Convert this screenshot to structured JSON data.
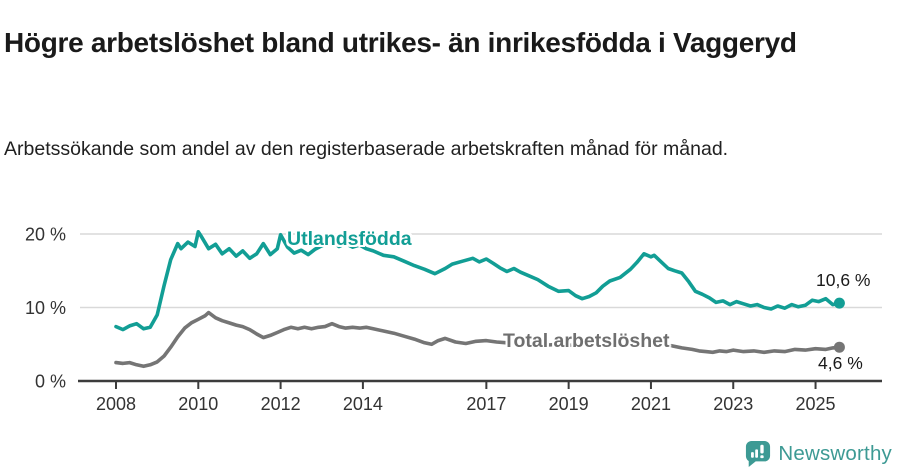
{
  "header": {
    "title": "Högre arbetslöshet bland utrikes- än inrikesfödda i Vaggeryd",
    "subtitle": "Arbetssökande som andel av den registerbaserade arbetskraften månad för månad."
  },
  "footer": {
    "brand": "Newsworthy"
  },
  "colors": {
    "foreign_line": "#129e95",
    "total_line": "#757575",
    "grid": "#d9d9d9",
    "axis": "#3c3c3c",
    "tick_text": "#333333",
    "logo": "#3d9a94"
  },
  "chart_data": {
    "type": "line",
    "title": "Högre arbetslöshet bland utrikes- än inrikesfödda i Vaggeryd",
    "subtitle": "Arbetssökande som andel av den registerbaserade arbetskraften månad för månad.",
    "x_range": [
      2008,
      2025.6
    ],
    "ylim": [
      0,
      21
    ],
    "grid": true,
    "legend": "inline-labels",
    "yticks": [
      {
        "value": 0,
        "label": "0 %"
      },
      {
        "value": 10,
        "label": "10 %"
      },
      {
        "value": 20,
        "label": "20 %"
      }
    ],
    "xticks": [
      "2008",
      "2010",
      "2012",
      "2014",
      "2017",
      "2019",
      "2021",
      "2023",
      "2025"
    ],
    "xtick_years": [
      2008,
      2010,
      2012,
      2014,
      2017,
      2019,
      2021,
      2023,
      2025
    ],
    "series": [
      {
        "name": "Utlandsfödda",
        "color": "#129e95",
        "end_label": "10,6 %",
        "end_value": 10.6,
        "points": [
          [
            2008.0,
            7.4
          ],
          [
            2008.17,
            7.0
          ],
          [
            2008.33,
            7.5
          ],
          [
            2008.5,
            7.8
          ],
          [
            2008.67,
            7.1
          ],
          [
            2008.83,
            7.3
          ],
          [
            2009.0,
            9.0
          ],
          [
            2009.17,
            13.0
          ],
          [
            2009.33,
            16.5
          ],
          [
            2009.5,
            18.7
          ],
          [
            2009.58,
            18.0
          ],
          [
            2009.75,
            18.9
          ],
          [
            2009.92,
            18.3
          ],
          [
            2010.0,
            20.3
          ],
          [
            2010.08,
            19.6
          ],
          [
            2010.25,
            18.0
          ],
          [
            2010.42,
            18.6
          ],
          [
            2010.58,
            17.3
          ],
          [
            2010.75,
            18.0
          ],
          [
            2010.92,
            17.0
          ],
          [
            2011.08,
            17.7
          ],
          [
            2011.25,
            16.7
          ],
          [
            2011.42,
            17.3
          ],
          [
            2011.58,
            18.7
          ],
          [
            2011.75,
            17.2
          ],
          [
            2011.92,
            18.0
          ],
          [
            2012.0,
            19.9
          ],
          [
            2012.17,
            18.2
          ],
          [
            2012.33,
            17.4
          ],
          [
            2012.5,
            17.8
          ],
          [
            2012.67,
            17.2
          ],
          [
            2012.83,
            17.9
          ],
          [
            2013.0,
            18.4
          ],
          [
            2013.25,
            19.0
          ],
          [
            2013.42,
            18.3
          ],
          [
            2013.58,
            18.7
          ],
          [
            2013.75,
            18.2
          ],
          [
            2013.92,
            18.5
          ],
          [
            2014.08,
            18.0
          ],
          [
            2014.25,
            17.7
          ],
          [
            2014.5,
            17.1
          ],
          [
            2014.75,
            16.9
          ],
          [
            2015.0,
            16.3
          ],
          [
            2015.25,
            15.7
          ],
          [
            2015.5,
            15.2
          ],
          [
            2015.75,
            14.6
          ],
          [
            2016.0,
            15.3
          ],
          [
            2016.17,
            15.9
          ],
          [
            2016.42,
            16.3
          ],
          [
            2016.67,
            16.7
          ],
          [
            2016.83,
            16.2
          ],
          [
            2017.0,
            16.6
          ],
          [
            2017.17,
            16.0
          ],
          [
            2017.33,
            15.4
          ],
          [
            2017.5,
            14.9
          ],
          [
            2017.67,
            15.3
          ],
          [
            2017.83,
            14.8
          ],
          [
            2018.0,
            14.4
          ],
          [
            2018.25,
            13.8
          ],
          [
            2018.5,
            12.9
          ],
          [
            2018.75,
            12.2
          ],
          [
            2019.0,
            12.3
          ],
          [
            2019.17,
            11.6
          ],
          [
            2019.33,
            11.2
          ],
          [
            2019.5,
            11.5
          ],
          [
            2019.67,
            12.0
          ],
          [
            2019.83,
            12.9
          ],
          [
            2020.0,
            13.6
          ],
          [
            2020.25,
            14.1
          ],
          [
            2020.5,
            15.2
          ],
          [
            2020.67,
            16.2
          ],
          [
            2020.83,
            17.3
          ],
          [
            2021.0,
            16.9
          ],
          [
            2021.08,
            17.1
          ],
          [
            2021.25,
            16.2
          ],
          [
            2021.42,
            15.3
          ],
          [
            2021.58,
            15.0
          ],
          [
            2021.75,
            14.7
          ],
          [
            2021.92,
            13.5
          ],
          [
            2022.08,
            12.2
          ],
          [
            2022.25,
            11.8
          ],
          [
            2022.42,
            11.3
          ],
          [
            2022.58,
            10.7
          ],
          [
            2022.75,
            10.9
          ],
          [
            2022.92,
            10.4
          ],
          [
            2023.08,
            10.8
          ],
          [
            2023.25,
            10.5
          ],
          [
            2023.42,
            10.2
          ],
          [
            2023.58,
            10.4
          ],
          [
            2023.75,
            10.0
          ],
          [
            2023.92,
            9.8
          ],
          [
            2024.08,
            10.2
          ],
          [
            2024.25,
            9.9
          ],
          [
            2024.42,
            10.4
          ],
          [
            2024.58,
            10.1
          ],
          [
            2024.75,
            10.3
          ],
          [
            2024.92,
            11.0
          ],
          [
            2025.08,
            10.8
          ],
          [
            2025.25,
            11.2
          ],
          [
            2025.42,
            10.4
          ],
          [
            2025.58,
            10.6
          ]
        ]
      },
      {
        "name": "Total arbetslöshet",
        "color": "#757575",
        "end_label": "4,6 %",
        "end_value": 4.6,
        "points": [
          [
            2008.0,
            2.5
          ],
          [
            2008.17,
            2.4
          ],
          [
            2008.33,
            2.5
          ],
          [
            2008.5,
            2.2
          ],
          [
            2008.67,
            2.0
          ],
          [
            2008.83,
            2.2
          ],
          [
            2009.0,
            2.6
          ],
          [
            2009.17,
            3.4
          ],
          [
            2009.33,
            4.6
          ],
          [
            2009.5,
            6.0
          ],
          [
            2009.67,
            7.2
          ],
          [
            2009.83,
            7.9
          ],
          [
            2010.0,
            8.4
          ],
          [
            2010.17,
            8.9
          ],
          [
            2010.25,
            9.3
          ],
          [
            2010.42,
            8.6
          ],
          [
            2010.58,
            8.2
          ],
          [
            2010.75,
            7.9
          ],
          [
            2010.92,
            7.6
          ],
          [
            2011.08,
            7.4
          ],
          [
            2011.25,
            7.0
          ],
          [
            2011.42,
            6.4
          ],
          [
            2011.58,
            5.9
          ],
          [
            2011.75,
            6.2
          ],
          [
            2011.92,
            6.6
          ],
          [
            2012.08,
            7.0
          ],
          [
            2012.25,
            7.3
          ],
          [
            2012.42,
            7.1
          ],
          [
            2012.58,
            7.3
          ],
          [
            2012.75,
            7.1
          ],
          [
            2012.92,
            7.3
          ],
          [
            2013.08,
            7.4
          ],
          [
            2013.25,
            7.8
          ],
          [
            2013.42,
            7.4
          ],
          [
            2013.58,
            7.2
          ],
          [
            2013.75,
            7.3
          ],
          [
            2013.92,
            7.2
          ],
          [
            2014.08,
            7.3
          ],
          [
            2014.25,
            7.1
          ],
          [
            2014.5,
            6.8
          ],
          [
            2014.75,
            6.5
          ],
          [
            2015.0,
            6.1
          ],
          [
            2015.25,
            5.7
          ],
          [
            2015.5,
            5.2
          ],
          [
            2015.67,
            5.0
          ],
          [
            2015.83,
            5.5
          ],
          [
            2016.0,
            5.8
          ],
          [
            2016.25,
            5.3
          ],
          [
            2016.5,
            5.1
          ],
          [
            2016.75,
            5.4
          ],
          [
            2017.0,
            5.5
          ],
          [
            2017.25,
            5.3
          ],
          [
            2017.5,
            5.2
          ],
          [
            2017.75,
            5.4
          ],
          [
            2018.0,
            5.3
          ],
          [
            2018.25,
            5.1
          ],
          [
            2018.5,
            4.9
          ],
          [
            2018.75,
            5.0
          ],
          [
            2019.0,
            4.9
          ],
          [
            2019.25,
            4.8
          ],
          [
            2019.5,
            4.9
          ],
          [
            2019.75,
            5.1
          ],
          [
            2020.0,
            5.3
          ],
          [
            2020.25,
            5.8
          ],
          [
            2020.5,
            5.9
          ],
          [
            2020.75,
            5.6
          ],
          [
            2021.0,
            5.4
          ],
          [
            2021.25,
            5.1
          ],
          [
            2021.5,
            4.8
          ],
          [
            2021.75,
            4.5
          ],
          [
            2022.0,
            4.3
          ],
          [
            2022.17,
            4.1
          ],
          [
            2022.33,
            4.0
          ],
          [
            2022.5,
            3.9
          ],
          [
            2022.67,
            4.1
          ],
          [
            2022.83,
            4.0
          ],
          [
            2023.0,
            4.2
          ],
          [
            2023.25,
            4.0
          ],
          [
            2023.5,
            4.1
          ],
          [
            2023.75,
            3.9
          ],
          [
            2024.0,
            4.1
          ],
          [
            2024.25,
            4.0
          ],
          [
            2024.5,
            4.3
          ],
          [
            2024.75,
            4.2
          ],
          [
            2025.0,
            4.4
          ],
          [
            2025.25,
            4.3
          ],
          [
            2025.42,
            4.5
          ],
          [
            2025.58,
            4.6
          ]
        ]
      }
    ]
  }
}
